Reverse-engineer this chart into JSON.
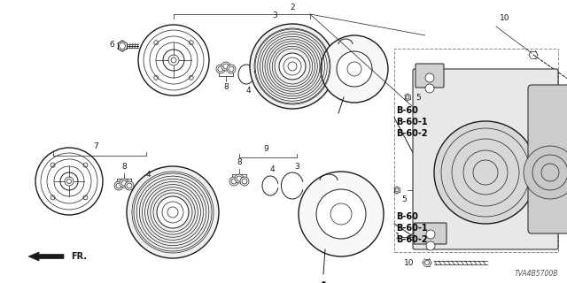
{
  "bg_color": "#ffffff",
  "diagram_code": "TVA4B5700B",
  "col": "#1a1a1a",
  "part_labels": {
    "B60_top": [
      "B-60",
      "B-60-1",
      "B-60-2"
    ],
    "B60_bot": [
      "B-60",
      "B-60-1",
      "B-60-2"
    ]
  },
  "layout": {
    "figsize": [
      6.4,
      3.2
    ],
    "dpi": 100
  }
}
